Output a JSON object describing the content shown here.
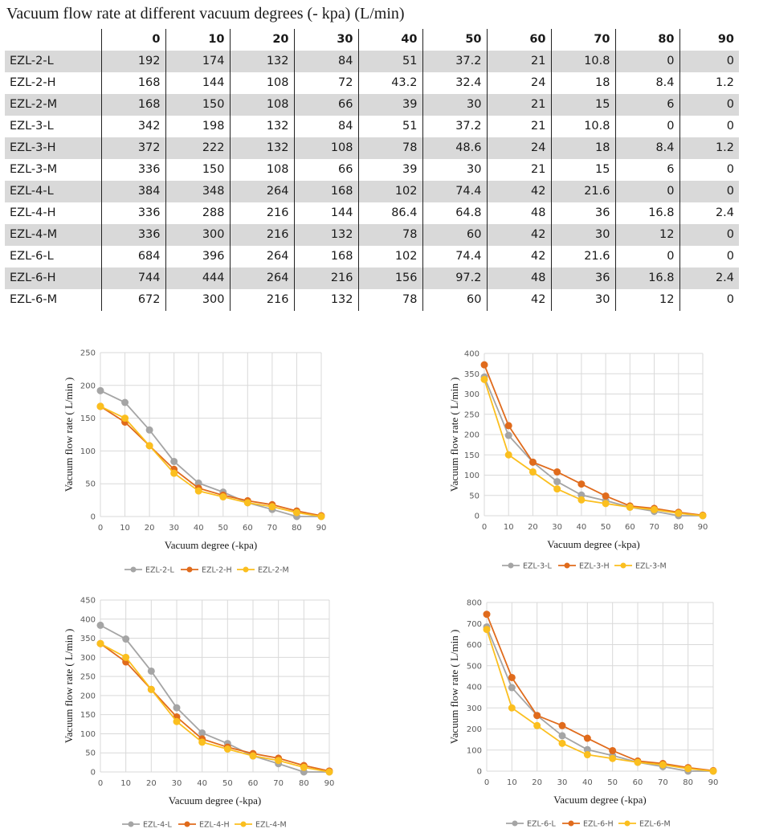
{
  "page": {
    "title": "Vacuum flow rate at different vacuum degrees (- kpa) (L/min)"
  },
  "table": {
    "columns": [
      "0",
      "10",
      "20",
      "30",
      "40",
      "50",
      "60",
      "70",
      "80",
      "90"
    ],
    "rows": [
      {
        "model": "EZL-2-L",
        "values": [
          "192",
          "174",
          "132",
          "84",
          "51",
          "37.2",
          "21",
          "10.8",
          "0",
          "0"
        ]
      },
      {
        "model": "EZL-2-H",
        "values": [
          "168",
          "144",
          "108",
          "72",
          "43.2",
          "32.4",
          "24",
          "18",
          "8.4",
          "1.2"
        ]
      },
      {
        "model": "EZL-2-M",
        "values": [
          "168",
          "150",
          "108",
          "66",
          "39",
          "30",
          "21",
          "15",
          "6",
          "0"
        ]
      },
      {
        "model": "EZL-3-L",
        "values": [
          "342",
          "198",
          "132",
          "84",
          "51",
          "37.2",
          "21",
          "10.8",
          "0",
          "0"
        ]
      },
      {
        "model": "EZL-3-H",
        "values": [
          "372",
          "222",
          "132",
          "108",
          "78",
          "48.6",
          "24",
          "18",
          "8.4",
          "1.2"
        ]
      },
      {
        "model": "EZL-3-M",
        "values": [
          "336",
          "150",
          "108",
          "66",
          "39",
          "30",
          "21",
          "15",
          "6",
          "0"
        ]
      },
      {
        "model": "EZL-4-L",
        "values": [
          "384",
          "348",
          "264",
          "168",
          "102",
          "74.4",
          "42",
          "21.6",
          "0",
          "0"
        ]
      },
      {
        "model": "EZL-4-H",
        "values": [
          "336",
          "288",
          "216",
          "144",
          "86.4",
          "64.8",
          "48",
          "36",
          "16.8",
          "2.4"
        ]
      },
      {
        "model": "EZL-4-M",
        "values": [
          "336",
          "300",
          "216",
          "132",
          "78",
          "60",
          "42",
          "30",
          "12",
          "0"
        ]
      },
      {
        "model": "EZL-6-L",
        "values": [
          "684",
          "396",
          "264",
          "168",
          "102",
          "74.4",
          "42",
          "21.6",
          "0",
          "0"
        ]
      },
      {
        "model": "EZL-6-H",
        "values": [
          "744",
          "444",
          "264",
          "216",
          "156",
          "97.2",
          "48",
          "36",
          "16.8",
          "2.4"
        ]
      },
      {
        "model": "EZL-6-M",
        "values": [
          "672",
          "300",
          "216",
          "132",
          "78",
          "60",
          "42",
          "30",
          "12",
          "0"
        ]
      }
    ]
  },
  "colors": {
    "L": "#a5a5a5",
    "H": "#e06b1c",
    "M": "#fbbf1f",
    "grid": "#d9d9d9",
    "row_shade": "#d9d9d9"
  },
  "chart_data": [
    {
      "type": "line",
      "xlabel": "Vacuum degree (-kpa)",
      "ylabel": "Vacuum flow rate ( L/min )",
      "x": [
        0,
        10,
        20,
        30,
        40,
        50,
        60,
        70,
        80,
        90
      ],
      "xticks": [
        "0",
        "10",
        "20",
        "30",
        "40",
        "50",
        "60",
        "70",
        "80",
        "90"
      ],
      "ylim": [
        0,
        250
      ],
      "yticks": [
        "0",
        "50",
        "100",
        "150",
        "200",
        "250"
      ],
      "grid": true,
      "legend": "bottom",
      "series": [
        {
          "name": "EZL-2-L",
          "color": "#a5a5a5",
          "values": [
            192,
            174,
            132,
            84,
            51,
            37.2,
            21,
            10.8,
            0,
            0
          ]
        },
        {
          "name": "EZL-2-H",
          "color": "#e06b1c",
          "values": [
            168,
            144,
            108,
            72,
            43.2,
            32.4,
            24,
            18,
            8.4,
            1.2
          ]
        },
        {
          "name": "EZL-2-M",
          "color": "#fbbf1f",
          "values": [
            168,
            150,
            108,
            66,
            39,
            30,
            21,
            15,
            6,
            0
          ]
        }
      ]
    },
    {
      "type": "line",
      "xlabel": "Vacuum degree (-kpa)",
      "ylabel": "Vacuum flow rate ( L/min )",
      "x": [
        0,
        10,
        20,
        30,
        40,
        50,
        60,
        70,
        80,
        90
      ],
      "xticks": [
        "0",
        "10",
        "20",
        "30",
        "40",
        "50",
        "60",
        "70",
        "80",
        "90"
      ],
      "ylim": [
        0,
        400
      ],
      "yticks": [
        "0",
        "50",
        "100",
        "150",
        "200",
        "250",
        "300",
        "350",
        "400"
      ],
      "grid": true,
      "legend": "bottom",
      "series": [
        {
          "name": "EZL-3-L",
          "color": "#a5a5a5",
          "values": [
            342,
            198,
            132,
            84,
            51,
            37.2,
            21,
            10.8,
            0,
            0
          ]
        },
        {
          "name": "EZL-3-H",
          "color": "#e06b1c",
          "values": [
            372,
            222,
            132,
            108,
            78,
            48.6,
            24,
            18,
            8.4,
            1.2
          ]
        },
        {
          "name": "EZL-3-M",
          "color": "#fbbf1f",
          "values": [
            336,
            150,
            108,
            66,
            39,
            30,
            21,
            15,
            6,
            0
          ]
        }
      ]
    },
    {
      "type": "line",
      "xlabel": "Vacuum degree (-kpa)",
      "ylabel": "Vacuum flow rate ( L/min )",
      "x": [
        0,
        10,
        20,
        30,
        40,
        50,
        60,
        70,
        80,
        90
      ],
      "xticks": [
        "0",
        "10",
        "20",
        "30",
        "40",
        "50",
        "60",
        "70",
        "80",
        "90"
      ],
      "ylim": [
        0,
        450
      ],
      "yticks": [
        "0",
        "50",
        "100",
        "150",
        "200",
        "250",
        "300",
        "350",
        "400",
        "450"
      ],
      "grid": true,
      "legend": "bottom",
      "series": [
        {
          "name": "EZL-4-L",
          "color": "#a5a5a5",
          "values": [
            384,
            348,
            264,
            168,
            102,
            74.4,
            42,
            21.6,
            0,
            0
          ]
        },
        {
          "name": "EZL-4-H",
          "color": "#e06b1c",
          "values": [
            336,
            288,
            216,
            144,
            86.4,
            64.8,
            48,
            36,
            16.8,
            2.4
          ]
        },
        {
          "name": "EZL-4-M",
          "color": "#fbbf1f",
          "values": [
            336,
            300,
            216,
            132,
            78,
            60,
            42,
            30,
            12,
            0
          ]
        }
      ]
    },
    {
      "type": "line",
      "xlabel": "Vacuum degree (-kpa)",
      "ylabel": "Vacuum flow rate ( L/min )",
      "x": [
        0,
        10,
        20,
        30,
        40,
        50,
        60,
        70,
        80,
        90
      ],
      "xticks": [
        "0",
        "10",
        "20",
        "30",
        "40",
        "50",
        "60",
        "70",
        "80",
        "90"
      ],
      "ylim": [
        0,
        800
      ],
      "yticks": [
        "0",
        "100",
        "200",
        "300",
        "400",
        "500",
        "600",
        "700",
        "800"
      ],
      "grid": true,
      "legend": "bottom",
      "series": [
        {
          "name": "EZL-6-L",
          "color": "#a5a5a5",
          "values": [
            684,
            396,
            264,
            168,
            102,
            74.4,
            42,
            21.6,
            0,
            0
          ]
        },
        {
          "name": "EZL-6-H",
          "color": "#e06b1c",
          "values": [
            744,
            444,
            264,
            216,
            156,
            97.2,
            48,
            36,
            16.8,
            2.4
          ]
        },
        {
          "name": "EZL-6-M",
          "color": "#fbbf1f",
          "values": [
            672,
            300,
            216,
            132,
            78,
            60,
            42,
            30,
            12,
            0
          ]
        }
      ]
    }
  ]
}
